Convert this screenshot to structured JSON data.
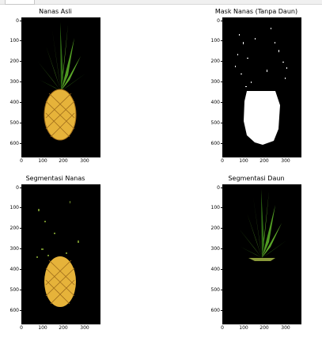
{
  "panels": [
    {
      "title": "Nanas Asli",
      "variant": "original"
    },
    {
      "title": "Mask Nanas (Tanpa Daun)",
      "variant": "mask"
    },
    {
      "title": "Segmentasi Nanas",
      "variant": "fruit"
    },
    {
      "title": "Segmentasi Daun",
      "variant": "leaves"
    }
  ],
  "axes": {
    "y_ticks": [
      "0",
      "100",
      "200",
      "300",
      "400",
      "500",
      "600"
    ],
    "x_ticks": [
      "0",
      "100",
      "200",
      "300"
    ]
  },
  "colors": {
    "background": "#000000",
    "leaf_green": "#5aa628",
    "leaf_dark": "#2e6b14",
    "fruit_yellow": "#e6b33a",
    "fruit_dark": "#9c6a1a",
    "mask_white": "#ffffff"
  }
}
